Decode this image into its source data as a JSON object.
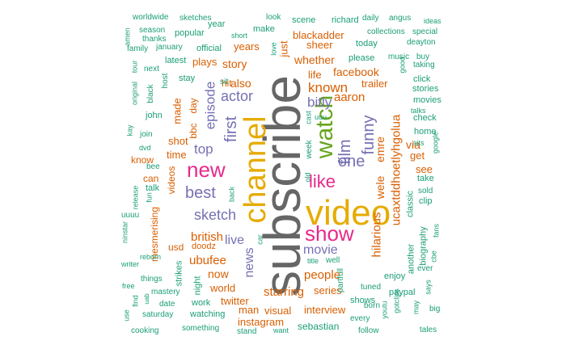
{
  "palette": {
    "teal": "#1b9e77",
    "orange": "#d95f02",
    "purple": "#7570b3",
    "pink": "#e7298a",
    "green": "#66a61e",
    "gold": "#e6ab02",
    "brown": "#a6761d",
    "grey": "#666666"
  },
  "words": [
    {
      "text": "subscribe",
      "color": "grey",
      "orient": "v"
    },
    {
      "text": "video",
      "color": "gold",
      "orient": "h"
    },
    {
      "text": "channel",
      "color": "gold",
      "orient": "v"
    },
    {
      "text": "watch",
      "color": "green",
      "orient": "v"
    },
    {
      "text": "show",
      "color": "pink",
      "orient": "h"
    },
    {
      "text": "new",
      "color": "pink",
      "orient": "h"
    },
    {
      "text": "like",
      "color": "pink",
      "orient": "h"
    },
    {
      "text": "one",
      "color": "purple",
      "orient": "h"
    },
    {
      "text": "film",
      "color": "purple",
      "orient": "v"
    },
    {
      "text": "best",
      "color": "purple",
      "orient": "h"
    },
    {
      "text": "sketch",
      "color": "purple",
      "orient": "h"
    },
    {
      "text": "first",
      "color": "purple",
      "orient": "v"
    },
    {
      "text": "episode",
      "color": "purple",
      "orient": "v"
    },
    {
      "text": "actor",
      "color": "purple",
      "orient": "h"
    },
    {
      "text": "top",
      "color": "purple",
      "orient": "h"
    },
    {
      "text": "bitly",
      "color": "purple",
      "orient": "h"
    },
    {
      "text": "funny",
      "color": "purple",
      "orient": "v"
    },
    {
      "text": "movie",
      "color": "purple",
      "orient": "h"
    },
    {
      "text": "live",
      "color": "purple",
      "orient": "h"
    },
    {
      "text": "news",
      "color": "purple",
      "orient": "v"
    },
    {
      "text": "known",
      "color": "orange",
      "orient": "h"
    },
    {
      "text": "british",
      "color": "orange",
      "orient": "h"
    },
    {
      "text": "ubufee",
      "color": "orange",
      "orient": "h"
    },
    {
      "text": "people",
      "color": "orange",
      "orient": "h"
    },
    {
      "text": "hilarious",
      "color": "orange",
      "orient": "v"
    },
    {
      "text": "ucaxtddhoetlyhgolua",
      "color": "orange",
      "orient": "v"
    },
    {
      "text": "emre",
      "color": "orange",
      "orient": "v"
    },
    {
      "text": "wele",
      "color": "orange",
      "orient": "v"
    },
    {
      "text": "via",
      "color": "orange",
      "orient": "h"
    },
    {
      "text": "starring",
      "color": "orange",
      "orient": "h"
    },
    {
      "text": "aaron",
      "color": "orange",
      "orient": "h"
    },
    {
      "text": "facebook",
      "color": "orange",
      "orient": "h"
    },
    {
      "text": "whether",
      "color": "orange",
      "orient": "h"
    },
    {
      "text": "blackadder",
      "color": "orange",
      "orient": "h"
    },
    {
      "text": "life",
      "color": "orange",
      "orient": "h"
    },
    {
      "text": "story",
      "color": "orange",
      "orient": "h"
    },
    {
      "text": "also",
      "color": "orange",
      "orient": "h"
    },
    {
      "text": "years",
      "color": "orange",
      "orient": "h"
    },
    {
      "text": "just",
      "color": "orange",
      "orient": "v"
    },
    {
      "text": "sheer",
      "color": "orange",
      "orient": "h"
    },
    {
      "text": "trailer",
      "color": "orange",
      "orient": "h"
    },
    {
      "text": "shot",
      "color": "orange",
      "orient": "h"
    },
    {
      "text": "time",
      "color": "orange",
      "orient": "h"
    },
    {
      "text": "made",
      "color": "orange",
      "orient": "v"
    },
    {
      "text": "bbc",
      "color": "orange",
      "orient": "v"
    },
    {
      "text": "day",
      "color": "orange",
      "orient": "v"
    },
    {
      "text": "videos",
      "color": "orange",
      "orient": "v"
    },
    {
      "text": "now",
      "color": "orange",
      "orient": "h"
    },
    {
      "text": "world",
      "color": "orange",
      "orient": "h"
    },
    {
      "text": "twitter",
      "color": "orange",
      "orient": "h"
    },
    {
      "text": "man",
      "color": "orange",
      "orient": "h"
    },
    {
      "text": "instagram",
      "color": "orange",
      "orient": "h"
    },
    {
      "text": "visual",
      "color": "orange",
      "orient": "h"
    },
    {
      "text": "interview",
      "color": "orange",
      "orient": "h"
    },
    {
      "text": "series",
      "color": "orange",
      "orient": "h"
    },
    {
      "text": "hit",
      "color": "orange",
      "orient": "h"
    },
    {
      "text": "plays",
      "color": "orange",
      "orient": "h"
    },
    {
      "text": "can",
      "color": "orange",
      "orient": "h"
    },
    {
      "text": "know",
      "color": "orange",
      "orient": "h"
    },
    {
      "text": "usd",
      "color": "orange",
      "orient": "h"
    },
    {
      "text": "doodz",
      "color": "orange",
      "orient": "h"
    },
    {
      "text": "mesmerising",
      "color": "orange",
      "orient": "v"
    },
    {
      "text": "get",
      "color": "orange",
      "orient": "h"
    },
    {
      "text": "see",
      "color": "orange",
      "orient": "h"
    },
    {
      "text": "classic",
      "color": "teal",
      "orient": "v"
    },
    {
      "text": "biography",
      "color": "teal",
      "orient": "v"
    },
    {
      "text": "another",
      "color": "teal",
      "orient": "v"
    },
    {
      "text": "sebastian",
      "color": "teal",
      "orient": "h"
    },
    {
      "text": "enjoy",
      "color": "teal",
      "orient": "h"
    },
    {
      "text": "shows",
      "color": "teal",
      "orient": "h"
    },
    {
      "text": "paypal",
      "color": "teal",
      "orient": "h"
    },
    {
      "text": "watching",
      "color": "teal",
      "orient": "h"
    },
    {
      "text": "work",
      "color": "teal",
      "orient": "h"
    },
    {
      "text": "today",
      "color": "teal",
      "orient": "h"
    },
    {
      "text": "please",
      "color": "teal",
      "orient": "h"
    },
    {
      "text": "collections",
      "color": "teal",
      "orient": "h"
    },
    {
      "text": "scene",
      "color": "teal",
      "orient": "h"
    },
    {
      "text": "richard",
      "color": "teal",
      "orient": "h"
    },
    {
      "text": "daily",
      "color": "teal",
      "orient": "h"
    },
    {
      "text": "angus",
      "color": "teal",
      "orient": "h"
    },
    {
      "text": "ideas",
      "color": "teal",
      "orient": "h"
    },
    {
      "text": "special",
      "color": "teal",
      "orient": "h"
    },
    {
      "text": "deayton",
      "color": "teal",
      "orient": "h"
    },
    {
      "text": "music",
      "color": "teal",
      "orient": "h"
    },
    {
      "text": "buy",
      "color": "teal",
      "orient": "h"
    },
    {
      "text": "good",
      "color": "teal",
      "orient": "v"
    },
    {
      "text": "taking",
      "color": "teal",
      "orient": "h"
    },
    {
      "text": "click",
      "color": "teal",
      "orient": "h"
    },
    {
      "text": "stories",
      "color": "teal",
      "orient": "h"
    },
    {
      "text": "movies",
      "color": "teal",
      "orient": "h"
    },
    {
      "text": "talks",
      "color": "teal",
      "orient": "h"
    },
    {
      "text": "check",
      "color": "teal",
      "orient": "h"
    },
    {
      "text": "home",
      "color": "teal",
      "orient": "h"
    },
    {
      "text": "sits",
      "color": "teal",
      "orient": "h"
    },
    {
      "text": "google",
      "color": "teal",
      "orient": "v"
    },
    {
      "text": "take",
      "color": "teal",
      "orient": "h"
    },
    {
      "text": "sold",
      "color": "teal",
      "orient": "h"
    },
    {
      "text": "clip",
      "color": "teal",
      "orient": "h"
    },
    {
      "text": "fans",
      "color": "teal",
      "orient": "v"
    },
    {
      "text": "cbe",
      "color": "teal",
      "orient": "v"
    },
    {
      "text": "ever",
      "color": "teal",
      "orient": "h"
    },
    {
      "text": "says",
      "color": "teal",
      "orient": "v"
    },
    {
      "text": "big",
      "color": "teal",
      "orient": "h"
    },
    {
      "text": "tales",
      "color": "teal",
      "orient": "h"
    },
    {
      "text": "may",
      "color": "teal",
      "orient": "v"
    },
    {
      "text": "gotclips",
      "color": "teal",
      "orient": "v"
    },
    {
      "text": "youtu",
      "color": "teal",
      "orient": "v"
    },
    {
      "text": "born",
      "color": "teal",
      "orient": "h"
    },
    {
      "text": "every",
      "color": "teal",
      "orient": "h"
    },
    {
      "text": "follow",
      "color": "teal",
      "orient": "h"
    },
    {
      "text": "tuned",
      "color": "teal",
      "orient": "h"
    },
    {
      "text": "partfull",
      "color": "teal",
      "orient": "v"
    },
    {
      "text": "title",
      "color": "teal",
      "orient": "h"
    },
    {
      "text": "well",
      "color": "teal",
      "orient": "h"
    },
    {
      "text": "want",
      "color": "teal",
      "orient": "h"
    },
    {
      "text": "stand",
      "color": "teal",
      "orient": "h"
    },
    {
      "text": "something",
      "color": "teal",
      "orient": "h"
    },
    {
      "text": "cooking",
      "color": "teal",
      "orient": "h"
    },
    {
      "text": "saturday",
      "color": "teal",
      "orient": "h"
    },
    {
      "text": "date",
      "color": "teal",
      "orient": "h"
    },
    {
      "text": "mastery",
      "color": "teal",
      "orient": "h"
    },
    {
      "text": "things",
      "color": "teal",
      "orient": "h"
    },
    {
      "text": "free",
      "color": "teal",
      "orient": "h"
    },
    {
      "text": "use",
      "color": "teal",
      "orient": "v"
    },
    {
      "text": "find",
      "color": "teal",
      "orient": "v"
    },
    {
      "text": "uab",
      "color": "teal",
      "orient": "v"
    },
    {
      "text": "writer",
      "color": "teal",
      "orient": "h"
    },
    {
      "text": "reborn",
      "color": "teal",
      "orient": "h"
    },
    {
      "text": "ninstar",
      "color": "teal",
      "orient": "v"
    },
    {
      "text": "uuuu",
      "color": "teal",
      "orient": "h"
    },
    {
      "text": "release",
      "color": "teal",
      "orient": "v"
    },
    {
      "text": "fun",
      "color": "teal",
      "orient": "v"
    },
    {
      "text": "bee",
      "color": "teal",
      "orient": "h"
    },
    {
      "text": "dvd",
      "color": "teal",
      "orient": "h"
    },
    {
      "text": "join",
      "color": "teal",
      "orient": "h"
    },
    {
      "text": "kay",
      "color": "teal",
      "orient": "v"
    },
    {
      "text": "original",
      "color": "teal",
      "orient": "v"
    },
    {
      "text": "tour",
      "color": "teal",
      "orient": "v"
    },
    {
      "text": "black",
      "color": "teal",
      "orient": "v"
    },
    {
      "text": "host",
      "color": "teal",
      "orient": "v"
    },
    {
      "text": "next",
      "color": "teal",
      "orient": "h"
    },
    {
      "text": "family",
      "color": "teal",
      "orient": "h"
    },
    {
      "text": "amen",
      "color": "teal",
      "orient": "v"
    },
    {
      "text": "season",
      "color": "teal",
      "orient": "h"
    },
    {
      "text": "thanks",
      "color": "teal",
      "orient": "h"
    },
    {
      "text": "worldwide",
      "color": "teal",
      "orient": "h"
    },
    {
      "text": "sketches",
      "color": "teal",
      "orient": "h"
    },
    {
      "text": "january",
      "color": "teal",
      "orient": "h"
    },
    {
      "text": "popular",
      "color": "teal",
      "orient": "h"
    },
    {
      "text": "official",
      "color": "teal",
      "orient": "h"
    },
    {
      "text": "latest",
      "color": "teal",
      "orient": "h"
    },
    {
      "text": "stay",
      "color": "teal",
      "orient": "h"
    },
    {
      "text": "year",
      "color": "teal",
      "orient": "h"
    },
    {
      "text": "short",
      "color": "teal",
      "orient": "h"
    },
    {
      "text": "look",
      "color": "teal",
      "orient": "h"
    },
    {
      "text": "make",
      "color": "teal",
      "orient": "h"
    },
    {
      "text": "love",
      "color": "teal",
      "orient": "v"
    },
    {
      "text": "sit",
      "color": "teal",
      "orient": "h"
    },
    {
      "text": "john",
      "color": "teal",
      "orient": "h"
    },
    {
      "text": "uuu",
      "color": "teal",
      "orient": "h"
    },
    {
      "text": "cast",
      "color": "teal",
      "orient": "v"
    },
    {
      "text": "week",
      "color": "teal",
      "orient": "v"
    },
    {
      "text": "old",
      "color": "teal",
      "orient": "v"
    },
    {
      "text": "back",
      "color": "teal",
      "orient": "v"
    },
    {
      "text": "car",
      "color": "teal",
      "orient": "v"
    },
    {
      "text": "night",
      "color": "teal",
      "orient": "v"
    },
    {
      "text": "strikes",
      "color": "teal",
      "orient": "v"
    },
    {
      "text": "talk",
      "color": "teal",
      "orient": "h"
    }
  ]
}
